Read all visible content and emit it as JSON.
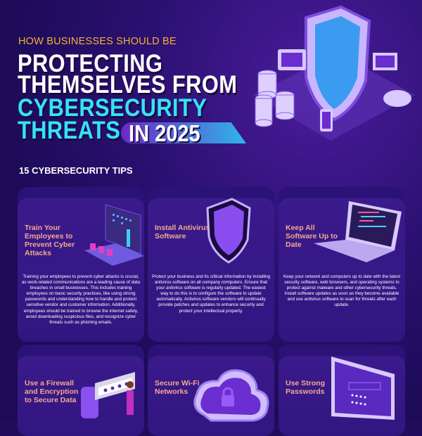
{
  "header": {
    "subtitle": "HOW BUSINESSES SHOULD BE",
    "title_line1": "PROTECTING",
    "title_line2": "THEMSELVES FROM",
    "title_line3": "CYBERSECURITY",
    "title_line4": "THREATS",
    "year": "IN 2025"
  },
  "section_title": "15 CYBERSECURITY TIPS",
  "colors": {
    "subtitle": "#f2b233",
    "accent": "#35e3f5",
    "card_title": "#f3a98b",
    "background": "#1f0d5c"
  },
  "tips": [
    {
      "title": "Train Your Employees to Prevent Cyber Attacks",
      "icon": "training-presentation-icon",
      "body": "Training your employees to prevent cyber attacks is crucial, as work-related communications are a leading cause of data breaches in small businesses. This includes training employees on basic security practices, like using strong passwords and understanding how to handle and protect sensitive vendor and customer information. Additionally, employees should be trained to browse the internet safely, avoid downloading suspicious files, and recognize cyber threats such as phishing emails."
    },
    {
      "title": "Install Antivirus Software",
      "icon": "shield-icon",
      "body": "Protect your business and its critical information by installing antivirus software on all company computers. Ensure that your antivirus software is regularly updated. The easiest way to do this is to configure the software to update automatically. Antivirus software vendors will continually provide patches and updates to enhance security and protect your intellectual property."
    },
    {
      "title": "Keep All Software Up to Date",
      "icon": "laptop-icon",
      "body": "Keep your network and computers up to date with the latest security software, web browsers, and operating systems to protect against malware and other cybersecurity threats. Install software updates as soon as they become available and use antivirus software to scan for threats after each update."
    },
    {
      "title": "Use a Firewall and Encryption to Secure Data",
      "icon": "password-key-icon",
      "body": ""
    },
    {
      "title": "Secure Wi-Fi Networks",
      "icon": "cloud-lock-icon",
      "body": ""
    },
    {
      "title": "Use Strong Passwords",
      "icon": "password-monitor-icon",
      "body": ""
    }
  ]
}
